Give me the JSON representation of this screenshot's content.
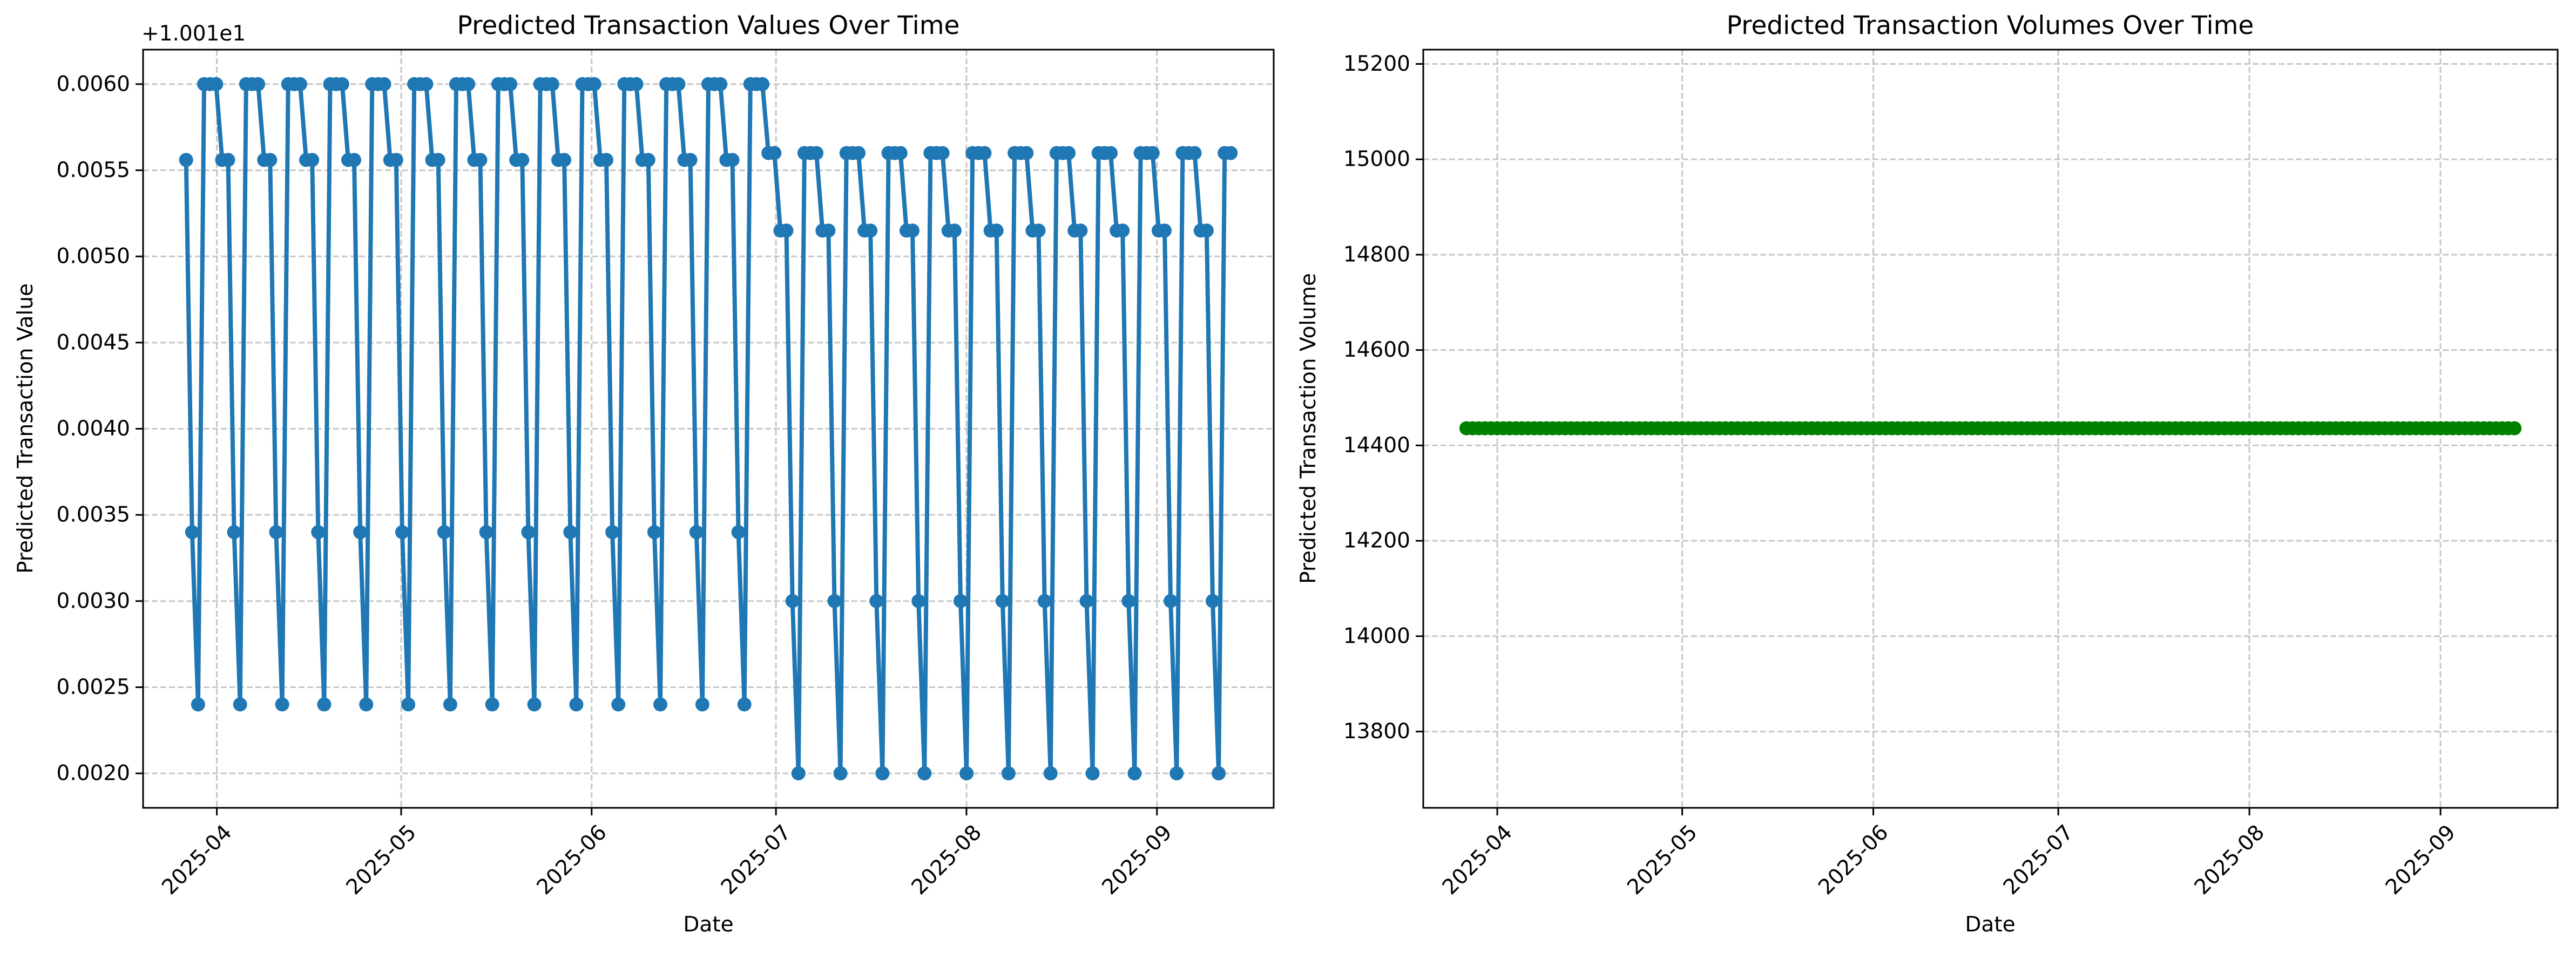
{
  "chart_data": [
    {
      "type": "line",
      "title": "Predicted Transaction Values Over Time",
      "xlabel": "Date",
      "ylabel": "Predicted Transaction Value",
      "y_offset_label": "+1.001e1",
      "ylim": [
        0.0018,
        0.0062
      ],
      "xlim": [
        "2025-03-20",
        "2025-09-20"
      ],
      "x_ticks": [
        "2025-04",
        "2025-05",
        "2025-06",
        "2025-07",
        "2025-08",
        "2025-09"
      ],
      "y_ticks": [
        "0.0020",
        "0.0025",
        "0.0030",
        "0.0035",
        "0.0040",
        "0.0045",
        "0.0050",
        "0.0055",
        "0.0060"
      ],
      "grid": true,
      "color": "#1f77b4",
      "x_start": "2025-03-27",
      "x_end": "2025-09-13",
      "y_values": [
        0.00556,
        0.0034,
        0.0024,
        0.006,
        0.006,
        0.006,
        0.00556,
        0.00556,
        0.0034,
        0.0024,
        0.006,
        0.006,
        0.006,
        0.00556,
        0.00556,
        0.0034,
        0.0024,
        0.006,
        0.006,
        0.006,
        0.00556,
        0.00556,
        0.0034,
        0.0024,
        0.006,
        0.006,
        0.006,
        0.00556,
        0.00556,
        0.0034,
        0.0024,
        0.006,
        0.006,
        0.006,
        0.00556,
        0.00556,
        0.0034,
        0.0024,
        0.006,
        0.006,
        0.006,
        0.00556,
        0.00556,
        0.0034,
        0.0024,
        0.006,
        0.006,
        0.006,
        0.00556,
        0.00556,
        0.0034,
        0.0024,
        0.006,
        0.006,
        0.006,
        0.00556,
        0.00556,
        0.0034,
        0.0024,
        0.006,
        0.006,
        0.006,
        0.00556,
        0.00556,
        0.0034,
        0.0024,
        0.006,
        0.006,
        0.006,
        0.00556,
        0.00556,
        0.0034,
        0.0024,
        0.006,
        0.006,
        0.006,
        0.00556,
        0.00556,
        0.0034,
        0.0024,
        0.006,
        0.006,
        0.006,
        0.00556,
        0.00556,
        0.0034,
        0.0024,
        0.006,
        0.006,
        0.006,
        0.00556,
        0.00556,
        0.0034,
        0.0024,
        0.006,
        0.006,
        0.006,
        0.0056,
        0.0056,
        0.00515,
        0.00515,
        0.003,
        0.002,
        0.0056,
        0.0056,
        0.0056,
        0.00515,
        0.00515,
        0.003,
        0.002,
        0.0056,
        0.0056,
        0.0056,
        0.00515,
        0.00515,
        0.003,
        0.002,
        0.0056,
        0.0056,
        0.0056,
        0.00515,
        0.00515,
        0.003,
        0.002,
        0.0056,
        0.0056,
        0.0056,
        0.00515,
        0.00515,
        0.003,
        0.002,
        0.0056,
        0.0056,
        0.0056,
        0.00515,
        0.00515,
        0.003,
        0.002,
        0.0056,
        0.0056,
        0.0056,
        0.00515,
        0.00515,
        0.003,
        0.002,
        0.0056,
        0.0056,
        0.0056,
        0.00515,
        0.00515,
        0.003,
        0.002,
        0.0056,
        0.0056,
        0.0056,
        0.00515,
        0.00515,
        0.003,
        0.002,
        0.0056,
        0.0056,
        0.0056,
        0.00515,
        0.00515,
        0.003,
        0.002,
        0.0056,
        0.0056,
        0.0056,
        0.00515,
        0.00515,
        0.003,
        0.002,
        0.0056,
        0.0056
      ]
    },
    {
      "type": "scatter",
      "title": "Predicted Transaction Volumes Over Time",
      "xlabel": "Date",
      "ylabel": "Predicted Transaction Volume",
      "ylim": [
        13640,
        15230
      ],
      "xlim": [
        "2025-03-20",
        "2025-09-20"
      ],
      "x_ticks": [
        "2025-04",
        "2025-05",
        "2025-06",
        "2025-07",
        "2025-08",
        "2025-09"
      ],
      "y_ticks": [
        "13800",
        "14000",
        "14200",
        "14400",
        "14600",
        "14800",
        "15000",
        "15200"
      ],
      "grid": true,
      "color": "#008000",
      "x_start": "2025-03-27",
      "x_end": "2025-09-13",
      "y_value": 14436
    }
  ]
}
